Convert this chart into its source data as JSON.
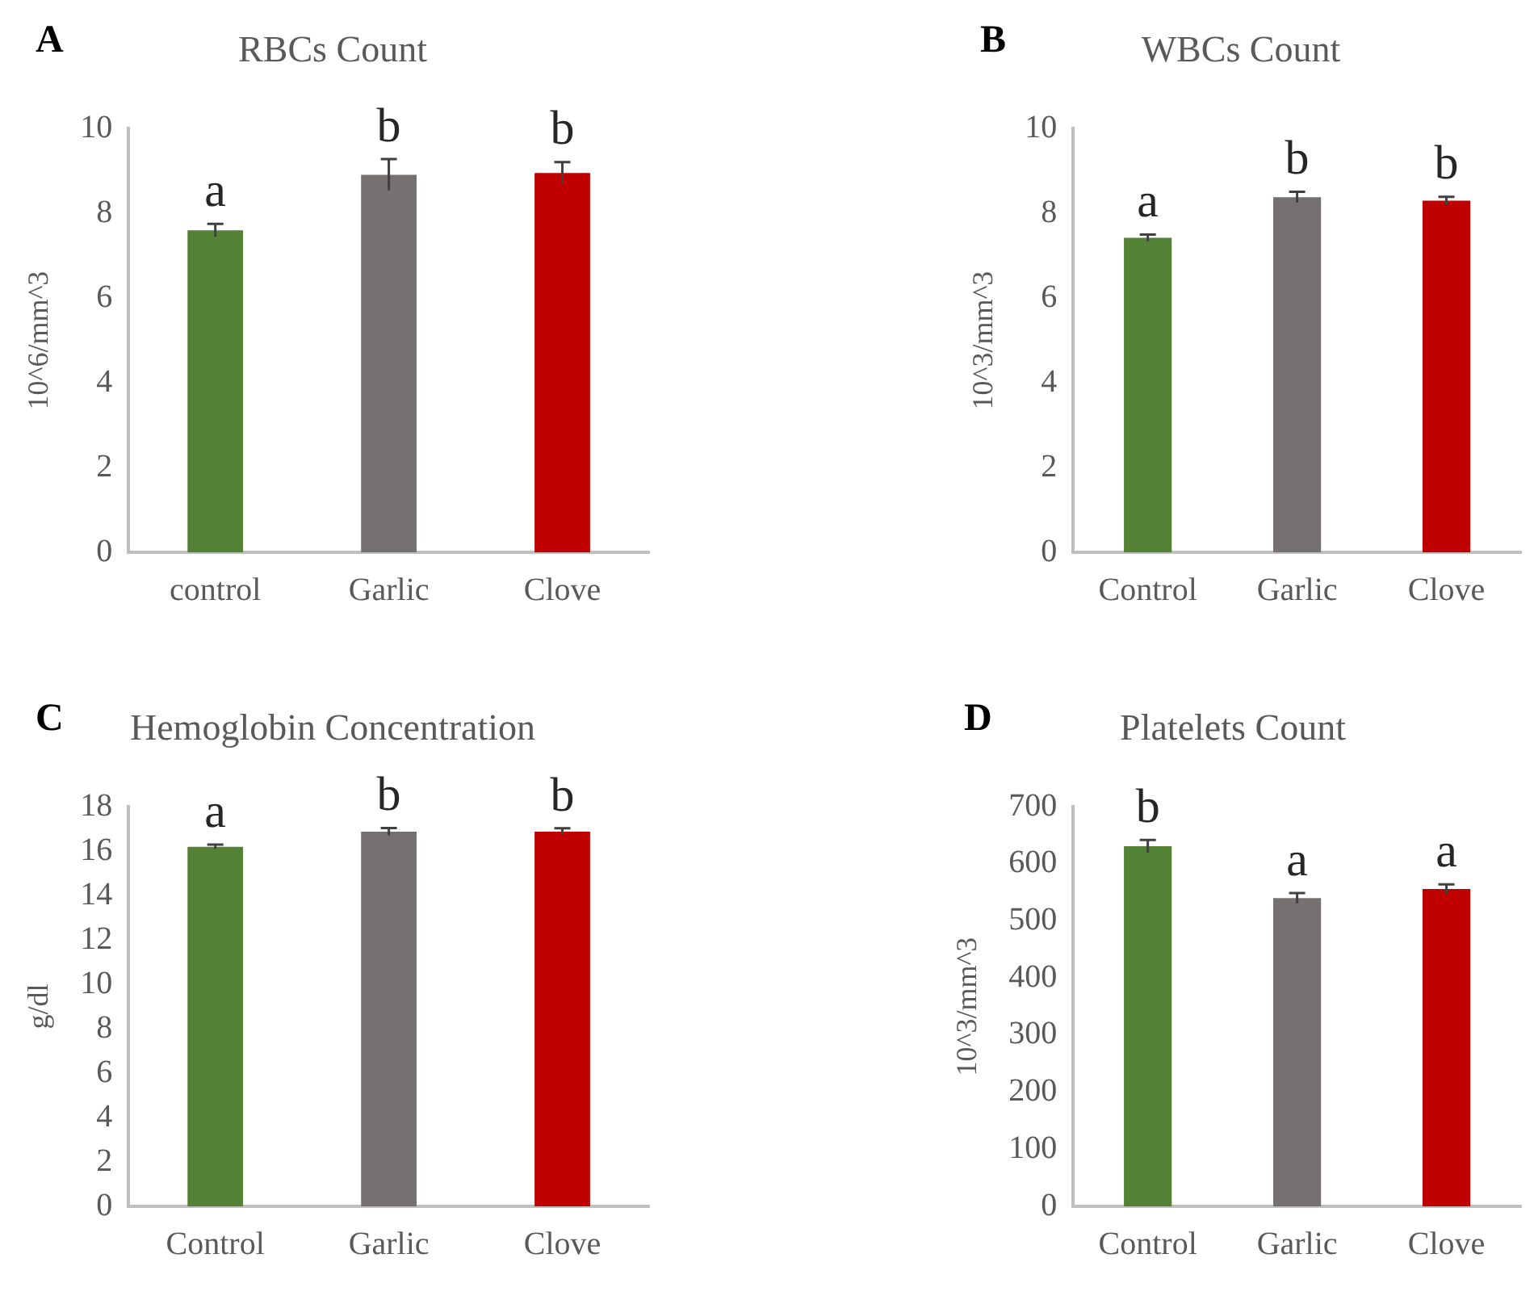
{
  "chart_data": [
    {
      "type": "bar",
      "title": "RBCs Count",
      "ylabel": "10^6/mm^3",
      "categories": [
        "control",
        "Garlic",
        "Clove"
      ],
      "values": [
        7.6,
        8.91,
        8.95
      ],
      "errors": [
        0.15,
        0.37,
        0.26
      ],
      "colors": [
        "#538135",
        "#767171",
        "#c00000"
      ],
      "ylim": [
        0,
        10
      ],
      "yticks": [
        0,
        2,
        4,
        6,
        8,
        10
      ],
      "grid": false,
      "annotations": [
        "A",
        {
          "text": "a",
          "x": "control",
          "y": 7.6
        },
        {
          "text": "b",
          "x": "Garlic",
          "y": 8.91
        },
        {
          "text": "b",
          "x": "Clove",
          "y": 8.95
        }
      ]
    },
    {
      "type": "bar",
      "title": "WBCs Count",
      "ylabel": "10^3/mm^3",
      "categories": [
        "Control",
        "Garlic",
        "Clove"
      ],
      "values": [
        7.42,
        8.38,
        8.3
      ],
      "errors": [
        0.08,
        0.13,
        0.09
      ],
      "colors": [
        "#538135",
        "#767171",
        "#c00000"
      ],
      "ylim": [
        0,
        10
      ],
      "yticks": [
        0,
        2,
        4,
        6,
        8,
        10
      ],
      "grid": false,
      "annotations": [
        "B",
        {
          "text": "a",
          "x": "Control",
          "y": 7.42
        },
        {
          "text": "b",
          "x": "Garlic",
          "y": 8.38
        },
        {
          "text": "b",
          "x": "Clove",
          "y": 8.3
        }
      ]
    },
    {
      "type": "bar",
      "title": "Hemoglobin Concentration",
      "ylabel": "g/dl",
      "categories": [
        "Control",
        "Garlic",
        "Clove"
      ],
      "values": [
        16.2,
        16.88,
        16.88
      ],
      "errors": [
        0.1,
        0.16,
        0.15
      ],
      "colors": [
        "#538135",
        "#767171",
        "#c00000"
      ],
      "ylim": [
        0,
        18
      ],
      "yticks": [
        0,
        2,
        4,
        6,
        8,
        10,
        12,
        14,
        16,
        18
      ],
      "grid": false,
      "annotations": [
        "C",
        {
          "text": "a",
          "x": "Control",
          "y": 16.2
        },
        {
          "text": "b",
          "x": "Garlic",
          "y": 16.88
        },
        {
          "text": "b",
          "x": "Clove",
          "y": 16.88
        }
      ]
    },
    {
      "type": "bar",
      "title": "Platelets Count",
      "ylabel": "10^3/mm^3",
      "categories": [
        "Control",
        "Garlic",
        "Clove"
      ],
      "values": [
        631,
        540,
        556
      ],
      "errors": [
        11,
        9,
        8
      ],
      "colors": [
        "#538135",
        "#767171",
        "#c00000"
      ],
      "ylim": [
        0,
        700
      ],
      "yticks": [
        0,
        100,
        200,
        300,
        400,
        500,
        600,
        700
      ],
      "grid": false,
      "annotations": [
        "D",
        {
          "text": "b",
          "x": "Control",
          "y": 631
        },
        {
          "text": "a",
          "x": "Garlic",
          "y": 540
        },
        {
          "text": "a",
          "x": "Clove",
          "y": 556
        }
      ]
    }
  ]
}
